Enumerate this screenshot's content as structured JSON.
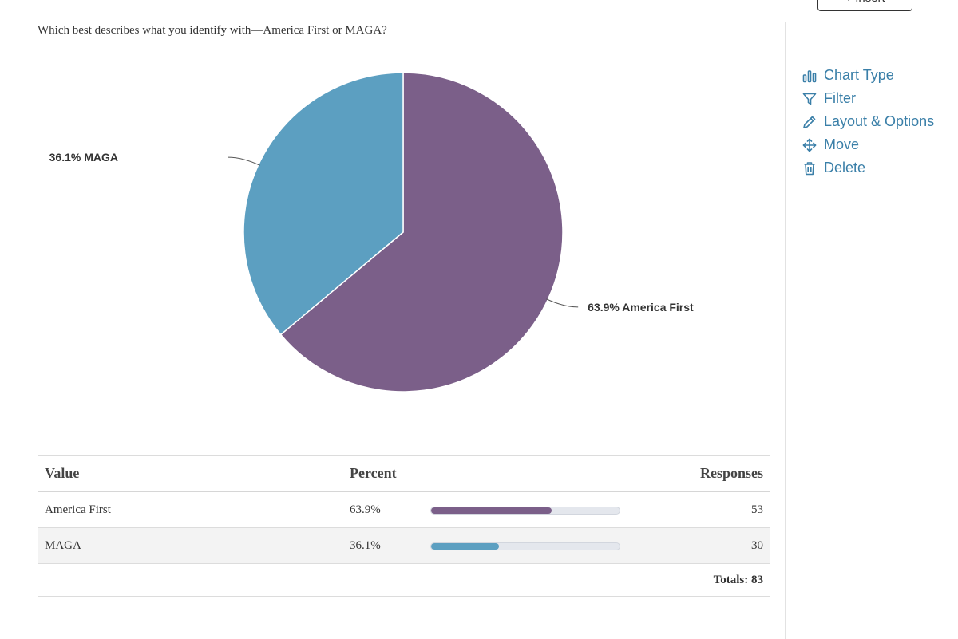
{
  "question": "Which best describes what you identify with—America First or MAGA?",
  "insert_button": {
    "label": "+ Insert"
  },
  "colors": {
    "america_first": "#7b5f89",
    "maga": "#5c9fc1",
    "link": "#3a7fa8"
  },
  "chart_data": {
    "type": "pie",
    "categories": [
      "America First",
      "MAGA"
    ],
    "values": [
      63.9,
      36.1
    ],
    "labels": [
      "63.9% America First",
      "36.1% MAGA"
    ]
  },
  "table": {
    "headers": {
      "value": "Value",
      "percent": "Percent",
      "responses": "Responses"
    },
    "rows": [
      {
        "value": "America First",
        "percent": "63.9%",
        "fraction": 0.639,
        "responses": "53"
      },
      {
        "value": "MAGA",
        "percent": "36.1%",
        "fraction": 0.361,
        "responses": "30"
      }
    ],
    "totals": "Totals: 83"
  },
  "menu": {
    "chart_type": {
      "label": "Chart Type",
      "icon": "bar-chart-icon"
    },
    "filter": {
      "label": "Filter",
      "icon": "filter-icon"
    },
    "layout": {
      "label": "Layout & Options",
      "icon": "pencil-icon"
    },
    "move": {
      "label": "Move",
      "icon": "move-arrows-icon"
    },
    "delete": {
      "label": "Delete",
      "icon": "trash-icon"
    }
  }
}
